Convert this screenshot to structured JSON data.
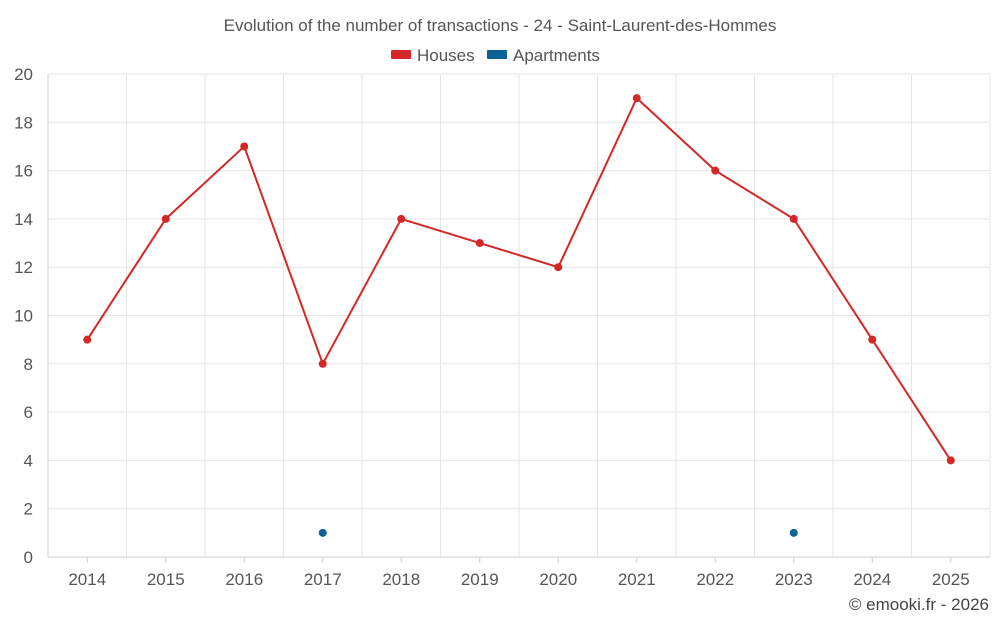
{
  "chart_data": {
    "type": "line",
    "title": "Evolution of the number of transactions - 24 - Saint-Laurent-des-Hommes",
    "categories": [
      "2014",
      "2015",
      "2016",
      "2017",
      "2018",
      "2019",
      "2020",
      "2021",
      "2022",
      "2023",
      "2024",
      "2025"
    ],
    "ylim": [
      0,
      20
    ],
    "yticks": [
      0,
      2,
      4,
      6,
      8,
      10,
      12,
      14,
      16,
      18,
      20
    ],
    "grid": true,
    "legend_position": "top-center",
    "series": [
      {
        "name": "Houses",
        "color": "#d62728",
        "values": [
          9,
          14,
          17,
          8,
          14,
          13,
          12,
          19,
          16,
          14,
          9,
          4
        ]
      },
      {
        "name": "Apartments",
        "color": "#0a6396",
        "values": [
          null,
          null,
          null,
          1,
          null,
          null,
          null,
          null,
          null,
          1,
          null,
          null
        ]
      }
    ],
    "credit": "© emooki.fr - 2026"
  }
}
